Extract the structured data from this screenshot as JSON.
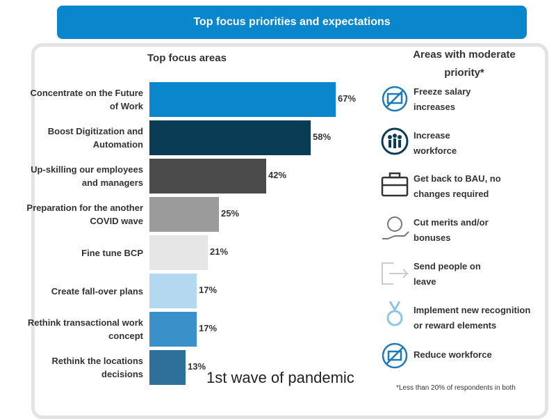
{
  "header": {
    "title": "Top focus priorities and expectations"
  },
  "chart_data": {
    "type": "bar",
    "orientation": "horizontal",
    "subtitle": "Top focus areas",
    "categories": [
      "Concentrate on the Future of Work",
      "Boost Digitization and Automation",
      "Up-skilling our employees and managers",
      "Preparation for the another COVID wave",
      "Fine tune BCP",
      "Create fall-over plans",
      "Rethink transactional work concept",
      "Rethink the locations decisions"
    ],
    "values": [
      67,
      58,
      42,
      25,
      21,
      17,
      17,
      13
    ],
    "value_labels": [
      "67%",
      "58%",
      "42%",
      "25%",
      "21%",
      "17%",
      "17%",
      "13%"
    ],
    "colors": [
      "#0a86cc",
      "#0b3c55",
      "#4b4b4b",
      "#9b9b9b",
      "#e6e6e6",
      "#b5d8f1",
      "#3a90c9",
      "#2e7097"
    ],
    "xlim": [
      0,
      100
    ],
    "annotation": "1st wave of pandemic"
  },
  "side_panel": {
    "title": "Areas with moderate priority*",
    "items": [
      "Freeze salary increases",
      "Increase workforce",
      "Get back to BAU, no changes required",
      "Cut merits and/or bonuses",
      "Send people on leave",
      "Implement new recognition or reward elements",
      "Reduce workforce"
    ],
    "footnote": "*Less than 20% of respondents in both"
  }
}
